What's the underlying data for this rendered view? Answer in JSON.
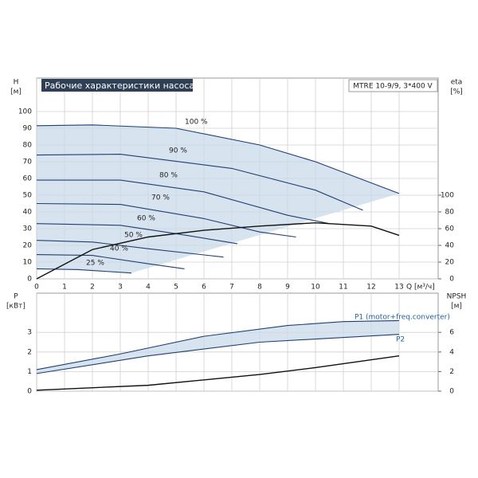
{
  "chart_data": [
    {
      "type": "line",
      "title": "Рабочие характеристики насоса",
      "subtitle": "MTRE 10-9/9, 3*400 V",
      "xlabel": "Q [м³/ч]",
      "ylabel": "H",
      "ylabel_unit": "[м]",
      "y2label": "eta",
      "y2label_unit": "[%]",
      "xlim": [
        0,
        14.4
      ],
      "ylim": [
        0,
        120
      ],
      "y2lim": [
        0,
        240
      ],
      "xticks": [
        0,
        1,
        2,
        3,
        4,
        5,
        6,
        7,
        8,
        9,
        10,
        11,
        12,
        13
      ],
      "yticks": [
        0,
        10,
        20,
        30,
        40,
        50,
        60,
        70,
        80,
        90,
        100
      ],
      "y2ticks": [
        0,
        20,
        40,
        60,
        80,
        100
      ],
      "grid": true,
      "series": [
        {
          "name": "100 %",
          "color": "#1f3f73",
          "x": [
            0,
            2,
            5,
            8,
            10,
            13
          ],
          "values": [
            91.5,
            92,
            90,
            80,
            70,
            51
          ]
        },
        {
          "name": "90 %",
          "color": "#1f3f73",
          "x": [
            0,
            3,
            7,
            10,
            11.7
          ],
          "values": [
            74,
            74.5,
            66,
            53,
            41
          ]
        },
        {
          "name": "80 %",
          "color": "#1f3f73",
          "x": [
            0,
            3,
            6,
            9,
            10.5
          ],
          "values": [
            59,
            59,
            52,
            38,
            33
          ]
        },
        {
          "name": "70 %",
          "color": "#1f3f73",
          "x": [
            0,
            3,
            6,
            8,
            9.3
          ],
          "values": [
            45,
            44.5,
            36,
            28,
            25
          ]
        },
        {
          "name": "60 %",
          "color": "#1f3f73",
          "x": [
            0,
            3,
            5,
            7.2
          ],
          "values": [
            33,
            32,
            27,
            21
          ]
        },
        {
          "name": "50 %",
          "color": "#1f3f73",
          "x": [
            0,
            2,
            4,
            6.7
          ],
          "values": [
            23,
            22,
            18,
            13
          ]
        },
        {
          "name": "40 %",
          "color": "#1f3f73",
          "x": [
            0,
            2,
            4,
            5.3
          ],
          "values": [
            14.5,
            14,
            9,
            6
          ]
        },
        {
          "name": "25 %",
          "color": "#1f3f73",
          "x": [
            0,
            1.5,
            3.4
          ],
          "values": [
            6,
            5.5,
            3.5
          ]
        },
        {
          "color": "#111111",
          "axis": "y2",
          "x": [
            0,
            2,
            4,
            6,
            8,
            10,
            12,
            13
          ],
          "values": [
            0,
            35,
            50,
            58,
            63,
            67,
            63,
            52
          ]
        }
      ]
    },
    {
      "type": "line",
      "ylabel": "P",
      "ylabel_unit": "[кВт]",
      "y2label": "NPSH",
      "y2label_unit": "[м]",
      "xlim": [
        0,
        14.4
      ],
      "ylim": [
        0,
        5
      ],
      "y2lim": [
        0,
        10
      ],
      "xticks": [
        0,
        1,
        2,
        3,
        4,
        5,
        6,
        7,
        8,
        9,
        10,
        11,
        12,
        13
      ],
      "yticks": [
        0,
        1,
        2,
        3
      ],
      "y2ticks": [
        0,
        2,
        4,
        6
      ],
      "grid": true,
      "series": [
        {
          "name": "P1 (motor+freq.converter)",
          "color": "#1f3f73",
          "x": [
            0,
            3,
            6,
            9,
            11,
            13
          ],
          "values": [
            1.1,
            1.9,
            2.8,
            3.35,
            3.55,
            3.6
          ]
        },
        {
          "name": "P2",
          "color": "#1f3f73",
          "x": [
            0,
            4,
            8,
            13
          ],
          "values": [
            0.9,
            1.8,
            2.5,
            2.9
          ]
        },
        {
          "color": "#111111",
          "axis": "y2",
          "x": [
            0,
            4,
            8,
            10,
            13
          ],
          "values": [
            0.1,
            0.6,
            1.7,
            2.4,
            3.6
          ]
        }
      ]
    }
  ]
}
